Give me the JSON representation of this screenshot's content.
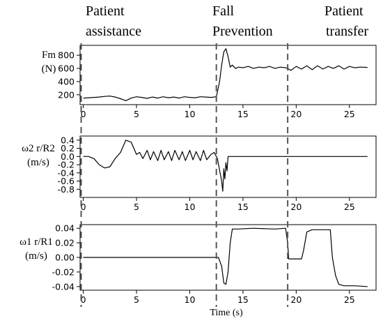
{
  "phases": [
    {
      "line1": "Patient",
      "line2": "assistance"
    },
    {
      "line1": "Fall",
      "line2": "Prevention"
    },
    {
      "line1": "Patient",
      "line2": "transfer"
    }
  ],
  "chart_data": {
    "type": "line",
    "xlabel": "Time (s)",
    "xlim": [
      -0.3,
      27.5
    ],
    "x_ticks": [
      0,
      5,
      10,
      15,
      20,
      25
    ],
    "phase_boundaries_x": [
      -0.2,
      12.5,
      19.2
    ],
    "panels": [
      {
        "ylabel_line1": "Fm",
        "ylabel_line2": "(N)",
        "ylim": [
          50,
          950
        ],
        "y_ticks": [
          200,
          400,
          600,
          800
        ],
        "series": [
          {
            "x": [
              0,
              0.5,
              1,
              1.5,
              2,
              2.5,
              3,
              3.5,
              4,
              4.5,
              5,
              5.5,
              6,
              6.5,
              7,
              7.5,
              8,
              8.5,
              9,
              9.5,
              10,
              10.5,
              11,
              11.5,
              12,
              12.5,
              12.8,
              13.0,
              13.2,
              13.4,
              13.6,
              13.8,
              14.0,
              14.3,
              14.6,
              15,
              15.5,
              16,
              16.5,
              17,
              17.5,
              18,
              18.5,
              19,
              19.2,
              19.5,
              20,
              20.5,
              21,
              21.5,
              22,
              22.5,
              23,
              23.5,
              24,
              24.5,
              25,
              25.5,
              26,
              26.7
            ],
            "y": [
              150,
              155,
              160,
              165,
              175,
              180,
              165,
              140,
              110,
              150,
              170,
              160,
              145,
              165,
              150,
              170,
              155,
              165,
              150,
              170,
              160,
              155,
              170,
              165,
              160,
              170,
              400,
              650,
              850,
              900,
              780,
              620,
              650,
              600,
              620,
              610,
              630,
              600,
              620,
              610,
              630,
              600,
              620,
              610,
              600,
              570,
              630,
              590,
              640,
              580,
              640,
              590,
              630,
              600,
              640,
              590,
              630,
              610,
              620,
              615
            ]
          }
        ]
      },
      {
        "ylabel_line1": "ω2 r/R2",
        "ylabel_line2": "(m/s)",
        "ylim": [
          -1.0,
          0.5
        ],
        "y_ticks": [
          0.4,
          0.2,
          0.0,
          -0.2,
          -0.4,
          -0.6,
          -0.8
        ],
        "series": [
          {
            "x": [
              0,
              0.5,
              1,
              1.5,
              2,
              2.5,
              3,
              3.5,
              4,
              4.5,
              5,
              5.3,
              5.6,
              6,
              6.3,
              6.6,
              7,
              7.3,
              7.6,
              8,
              8.3,
              8.6,
              9,
              9.3,
              9.6,
              10,
              10.3,
              10.6,
              11,
              11.3,
              11.6,
              12,
              12.3,
              12.6,
              13.0,
              13.1,
              13.2,
              13.3,
              13.4,
              13.5,
              13.6,
              13.7,
              14,
              15,
              20,
              25,
              26.7
            ],
            "y": [
              0,
              0,
              -0.05,
              -0.2,
              -0.28,
              -0.25,
              -0.05,
              0.1,
              0.4,
              0.35,
              0.05,
              0.1,
              -0.05,
              0.15,
              -0.08,
              0.12,
              -0.1,
              0.15,
              -0.08,
              0.12,
              -0.1,
              0.15,
              -0.08,
              0.12,
              -0.1,
              0.15,
              -0.08,
              0.12,
              -0.1,
              0.15,
              -0.08,
              0.05,
              0.1,
              -0.05,
              -0.6,
              -0.85,
              -0.3,
              -0.55,
              -0.15,
              -0.35,
              0.0,
              0.0,
              0.0,
              0.0,
              0.0,
              0.0,
              0.0
            ]
          }
        ]
      },
      {
        "ylabel_line1": "ω1 r/R1",
        "ylabel_line2": "(m/s)",
        "ylim": [
          -0.045,
          0.045
        ],
        "y_ticks": [
          0.04,
          0.02,
          0.0,
          -0.02,
          -0.04
        ],
        "series": [
          {
            "x": [
              0,
              2,
              4,
              6,
              8,
              10,
              12,
              12.7,
              13.0,
              13.2,
              13.4,
              13.6,
              13.8,
              14.0,
              14.5,
              16,
              18,
              19.0,
              19.2,
              19.3,
              19.5,
              20.5,
              20.7,
              21.0,
              21.5,
              22.5,
              23.2,
              23.4,
              23.7,
              24.0,
              24.5,
              25.5,
              26.7
            ],
            "y": [
              0,
              0,
              0,
              0,
              0,
              0,
              0,
              0,
              -0.012,
              -0.035,
              -0.037,
              -0.02,
              0.02,
              0.039,
              0.039,
              0.04,
              0.039,
              0.04,
              0.02,
              -0.002,
              -0.002,
              -0.002,
              0.01,
              0.035,
              0.038,
              0.038,
              0.038,
              0.0,
              -0.025,
              -0.037,
              -0.039,
              -0.039,
              -0.04
            ]
          }
        ]
      }
    ]
  }
}
